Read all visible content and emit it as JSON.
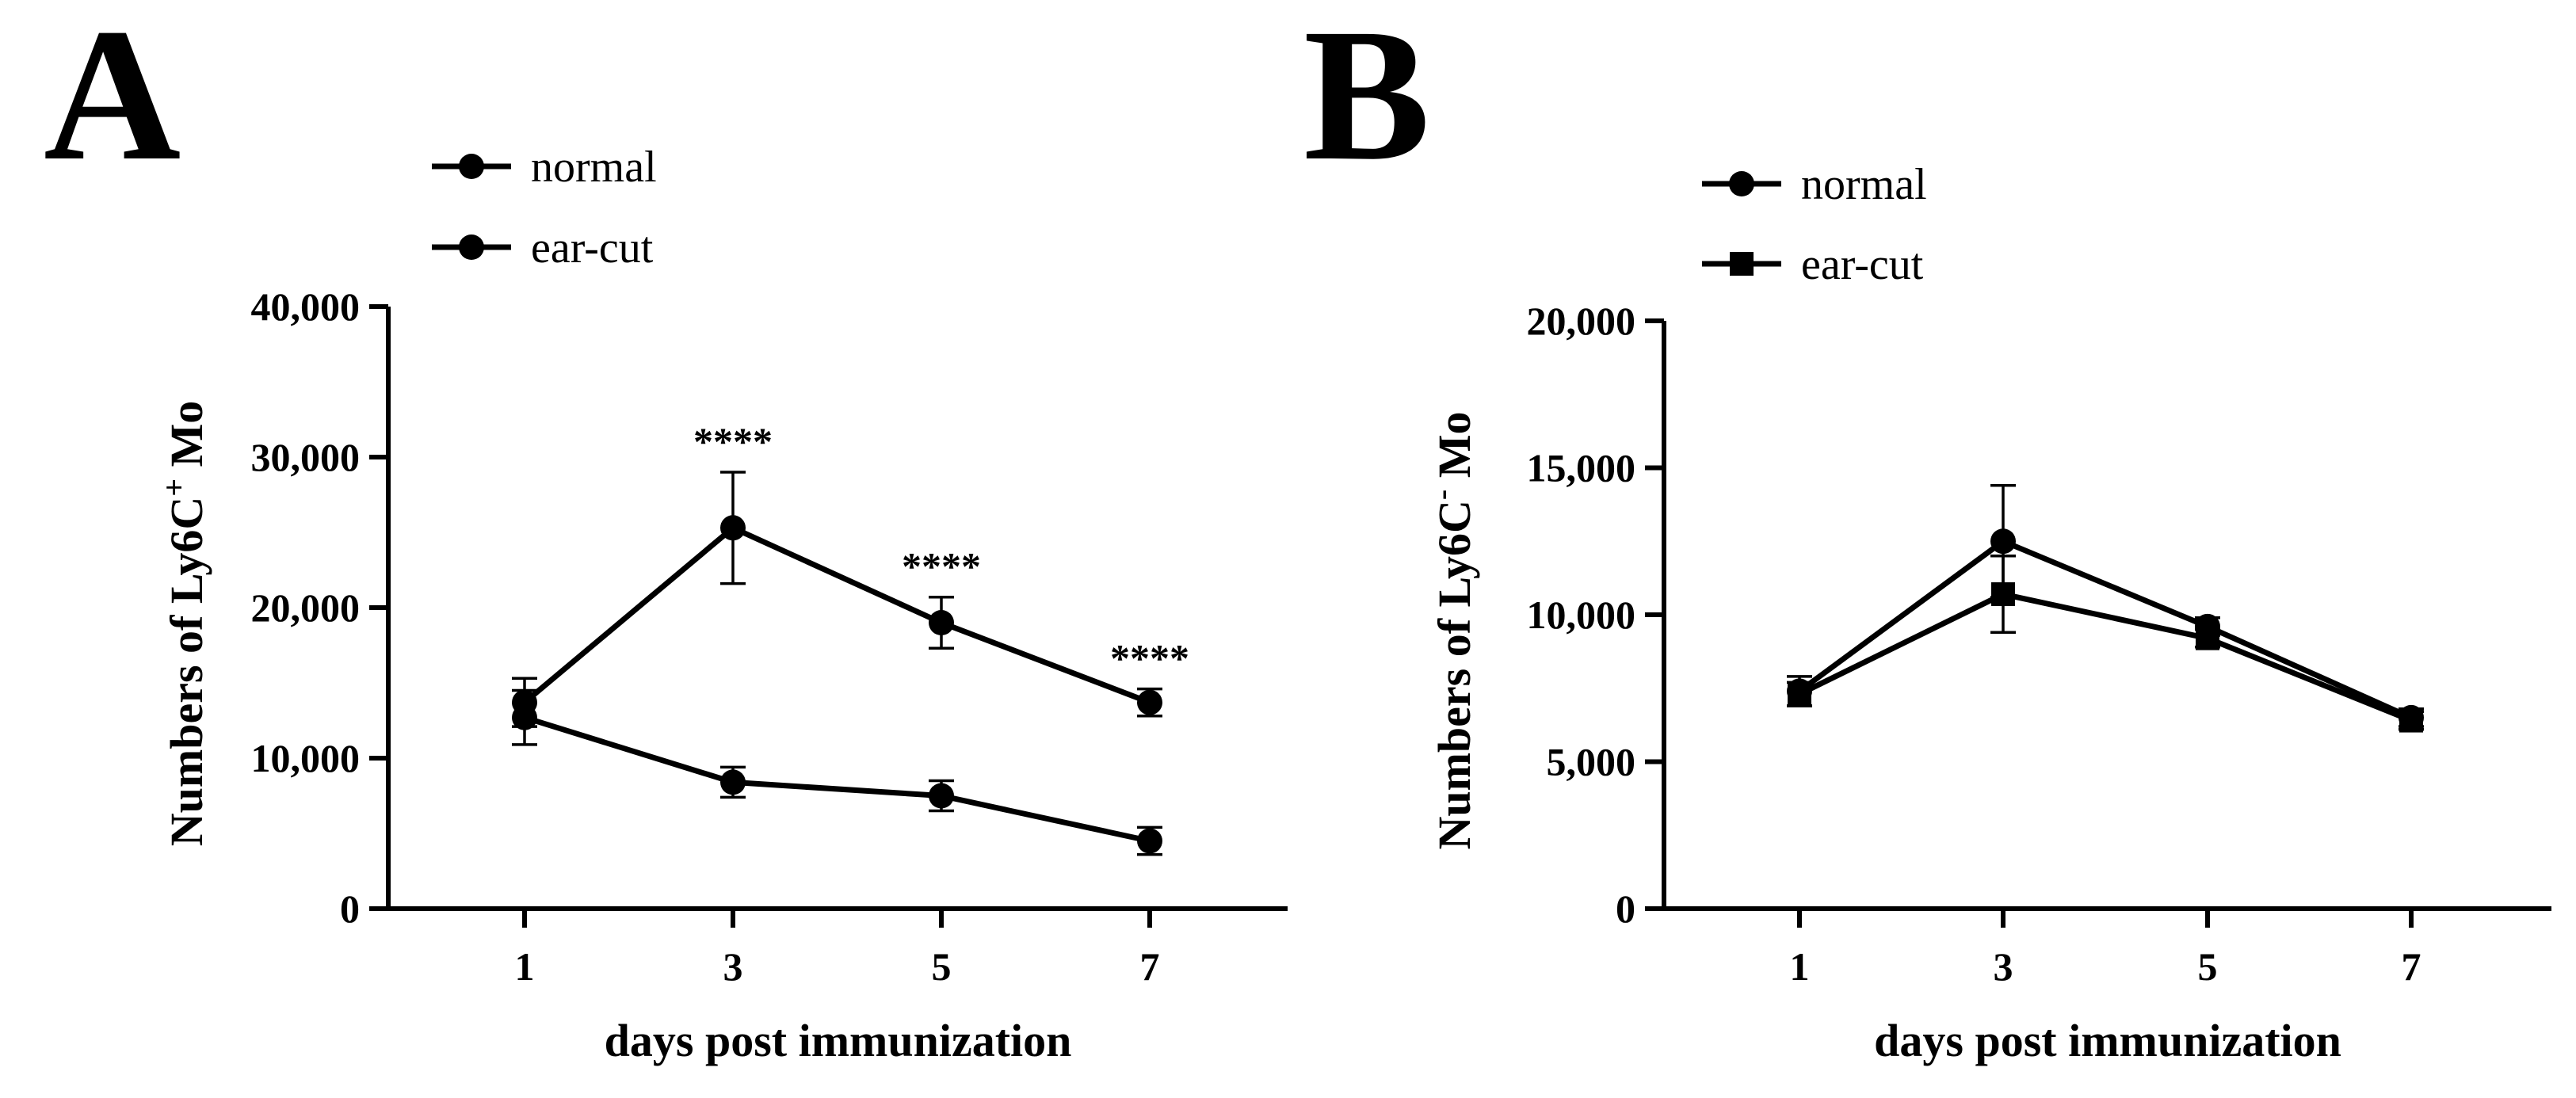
{
  "figure": {
    "panel_labels": [
      "A",
      "B"
    ]
  },
  "chart_data": [
    {
      "panel": "A",
      "type": "line",
      "title": "",
      "xlabel": "days post immunization",
      "ylabel": "Numbers of Ly6C",
      "ylabel_sup": "+",
      "ylabel_suffix": " Mo",
      "x": [
        1,
        3,
        5,
        7
      ],
      "x_tick_labels": [
        "1",
        "3",
        "5",
        "7"
      ],
      "ylim": [
        0,
        40000
      ],
      "y_ticks": [
        0,
        10000,
        20000,
        30000,
        40000
      ],
      "y_tick_labels": [
        "0",
        "10,000",
        "20,000",
        "30,000",
        "40,000"
      ],
      "legend": {
        "position": "top-left",
        "entries": [
          "normal",
          "ear-cut"
        ]
      },
      "series": [
        {
          "name": "normal",
          "marker": "circle",
          "values": [
            12700,
            8400,
            7500,
            4500
          ],
          "errors": [
            1800,
            1000,
            1000,
            900
          ]
        },
        {
          "name": "ear-cut",
          "marker": "circle",
          "values": [
            13700,
            25300,
            19000,
            13700
          ],
          "errors": [
            1600,
            3700,
            1700,
            900
          ]
        }
      ],
      "annotations": [
        {
          "x": 3,
          "text": "****"
        },
        {
          "x": 5,
          "text": "****"
        },
        {
          "x": 7,
          "text": "****"
        }
      ]
    },
    {
      "panel": "B",
      "type": "line",
      "title": "",
      "xlabel": "days post immunization",
      "ylabel": "Numbers of Ly6C",
      "ylabel_sup": "-",
      "ylabel_suffix": " Mo",
      "x": [
        1,
        3,
        5,
        7
      ],
      "x_tick_labels": [
        "1",
        "3",
        "5",
        "7"
      ],
      "ylim": [
        0,
        20000
      ],
      "y_ticks": [
        0,
        5000,
        10000,
        15000,
        20000
      ],
      "y_tick_labels": [
        "0",
        "5,000",
        "10,000",
        "15,000",
        "20,000"
      ],
      "legend": {
        "position": "top-left",
        "entries": [
          "normal",
          "ear-cut"
        ]
      },
      "series": [
        {
          "name": "normal",
          "marker": "circle",
          "values": [
            7400,
            12500,
            9600,
            6500
          ],
          "errors": [
            500,
            1900,
            300,
            300
          ]
        },
        {
          "name": "ear-cut",
          "marker": "square",
          "values": [
            7300,
            10700,
            9200,
            6400
          ],
          "errors": [
            400,
            1300,
            300,
            300
          ]
        }
      ],
      "annotations": []
    }
  ]
}
